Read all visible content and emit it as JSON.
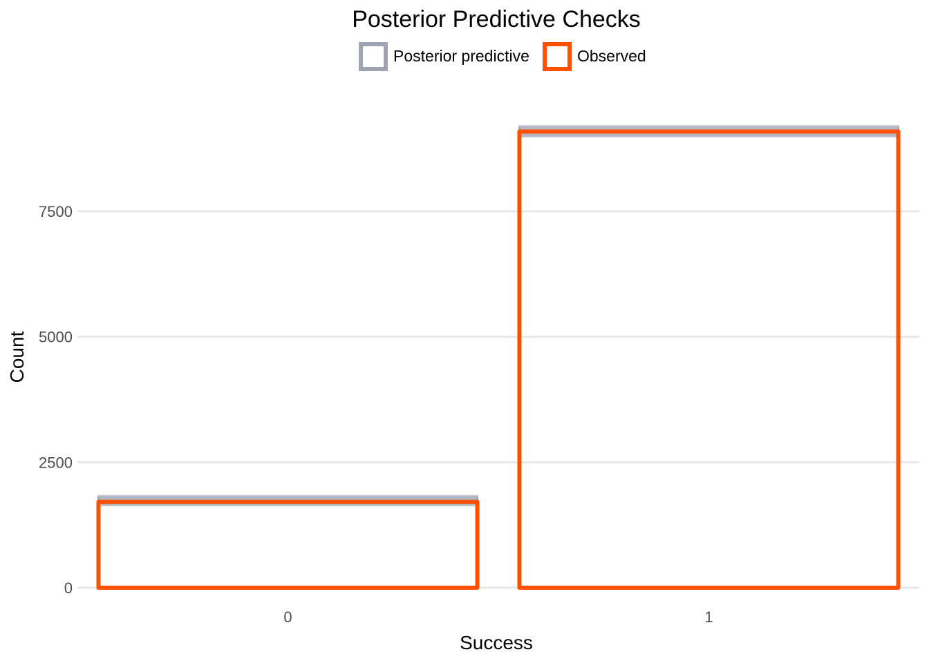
{
  "chart_data": {
    "type": "bar",
    "title": "Posterior Predictive Checks",
    "xlabel": "Success",
    "ylabel": "Count",
    "categories": [
      "0",
      "1"
    ],
    "series": [
      {
        "name": "Posterior predictive",
        "color": "#a0a3b4",
        "values": [
          1750,
          9110
        ],
        "ranges": [
          [
            1640,
            1830
          ],
          [
            8990,
            9200
          ]
        ]
      },
      {
        "name": "Observed",
        "color": "#ff5000",
        "values": [
          1710,
          9090
        ]
      }
    ],
    "ylim": [
      0,
      9200
    ],
    "yticks": [
      0,
      2500,
      5000,
      7500
    ],
    "ytick_labels": [
      "0",
      "2500",
      "5000",
      "7500"
    ],
    "grid": true,
    "legend": "top-center"
  }
}
